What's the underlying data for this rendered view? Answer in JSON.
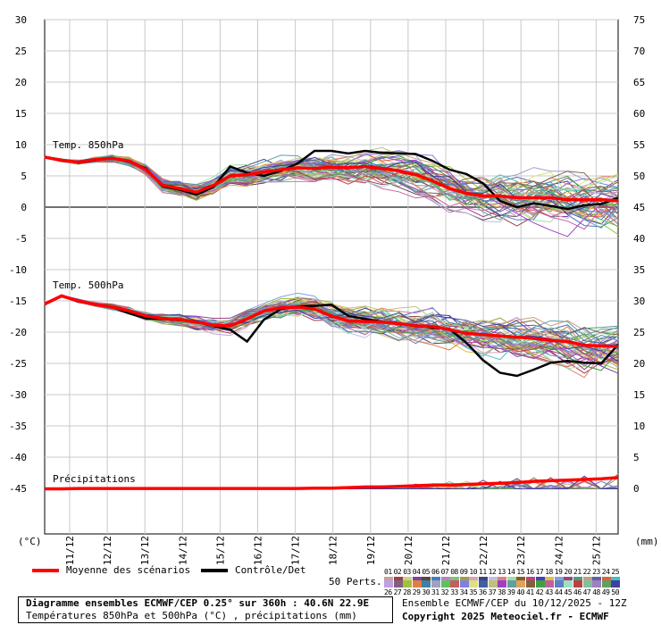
{
  "chart_data": {
    "type": "line",
    "x_labels": [
      "11/12",
      "12/12",
      "13/12",
      "14/12",
      "15/12",
      "16/12",
      "17/12",
      "18/12",
      "19/12",
      "20/12",
      "21/12",
      "22/12",
      "23/12",
      "24/12",
      "25/12"
    ],
    "y_left_ticks": [
      30,
      25,
      20,
      15,
      10,
      5,
      0,
      -5,
      -10,
      -15,
      -20,
      -25,
      -30,
      -35,
      -40,
      -45
    ],
    "y_right_ticks": [
      75,
      70,
      65,
      60,
      55,
      50,
      45,
      40,
      35,
      30,
      25,
      20,
      15,
      10,
      5,
      0
    ],
    "y_left_unit": "(°C)",
    "y_right_unit": "(mm)",
    "grid": true,
    "panels": [
      {
        "label": "Temp. 850hPa"
      },
      {
        "label": "Temp. 500hPa"
      },
      {
        "label": "Précipitations"
      }
    ],
    "series": [
      {
        "name": "Moyenne des scénarios",
        "color": "#ff0000",
        "t850": [
          8,
          7.5,
          7.2,
          7.6,
          7.8,
          7.4,
          6,
          3.5,
          3,
          2.4,
          3.5,
          5,
          5.2,
          5.6,
          6,
          6.3,
          6.2,
          6.4,
          6.3,
          6.5,
          6.2,
          5.8,
          5.2,
          4.2,
          3,
          2.2,
          1.8,
          1.8,
          1.5,
          1.5,
          1.5,
          1.2,
          1.2,
          1.2,
          1
        ],
        "t500": [
          -15.5,
          -14.2,
          -15,
          -15.6,
          -16,
          -16.6,
          -17.4,
          -17.8,
          -18,
          -18.4,
          -18.9,
          -19,
          -17.9,
          -16.6,
          -16.1,
          -16,
          -16.3,
          -17.4,
          -18.2,
          -18.3,
          -18.4,
          -18.6,
          -19,
          -19.1,
          -19.6,
          -20.2,
          -20.4,
          -20.6,
          -20.8,
          -21,
          -21.3,
          -21.5,
          -22.1,
          -22.2,
          -22.3
        ],
        "precip": [
          0,
          0,
          0.05,
          0.05,
          0.05,
          0.05,
          0.05,
          0.05,
          0.05,
          0.05,
          0.05,
          0.05,
          0.05,
          0.05,
          0.05,
          0.05,
          0.1,
          0.1,
          0.2,
          0.3,
          0.3,
          0.4,
          0.5,
          0.6,
          0.6,
          0.7,
          0.8,
          0.9,
          1,
          1.2,
          1.3,
          1.4,
          1.5,
          1.6,
          1.8
        ]
      },
      {
        "name": "Contrôle/Det",
        "color": "#000000",
        "t850": [
          8,
          7.6,
          7.1,
          7.5,
          7.8,
          7.3,
          6.2,
          3.3,
          2.8,
          2,
          3.2,
          6.5,
          5.5,
          5,
          5.8,
          7,
          9,
          9,
          8.6,
          9,
          8.7,
          8.6,
          8.5,
          7.4,
          6,
          5.3,
          3.8,
          1,
          0,
          0.6,
          0.2,
          -0.3,
          0.3,
          0.5,
          1.5
        ],
        "t500": [
          -15.5,
          -14.2,
          -15.1,
          -15.6,
          -16,
          -17,
          -17.8,
          -17.9,
          -18.1,
          -18.3,
          -19,
          -19.6,
          -21.5,
          -18,
          -16.3,
          -15.9,
          -15.8,
          -15.6,
          -17.4,
          -17.9,
          -18.3,
          -18.7,
          -18.9,
          -19.3,
          -19.5,
          -21.7,
          -24.5,
          -26.5,
          -27,
          -26,
          -24.9,
          -24.6,
          -24.9,
          -25,
          -22
        ]
      }
    ],
    "members": 50
  },
  "legend": {
    "mean_label": "Moyenne des scénarios",
    "control_label": "Contrôle/Det",
    "perts_label": "50 Perts.",
    "perts_row1": [
      "01",
      "02",
      "03",
      "04",
      "05",
      "06",
      "07",
      "08",
      "09",
      "10",
      "11",
      "12",
      "13",
      "14",
      "15",
      "16",
      "17",
      "18",
      "19",
      "20",
      "21",
      "22",
      "23",
      "24",
      "25"
    ],
    "perts_row2": [
      "26",
      "27",
      "28",
      "29",
      "30",
      "31",
      "32",
      "33",
      "34",
      "35",
      "36",
      "37",
      "38",
      "39",
      "40",
      "41",
      "42",
      "43",
      "44",
      "45",
      "46",
      "47",
      "48",
      "49",
      "50"
    ],
    "perts_colors_row1": [
      "#c8a0a0",
      "#a04040",
      "#d0d080",
      "#8040a0",
      "#604040",
      "#4080c0",
      "#c080c0",
      "#80c080",
      "#a0a040",
      "#e0a0c0",
      "#404080",
      "#c0c0e0",
      "#e08080",
      "#a0e0a0",
      "#806020",
      "#c04080",
      "#4040c0",
      "#e0c040",
      "#80a0e0",
      "#a04080",
      "#40a080",
      "#c0a080",
      "#6060a0",
      "#e06040",
      "#40c0c0"
    ],
    "perts_colors_row2": [
      "#c0a0e0",
      "#806080",
      "#a0c040",
      "#e08040",
      "#4080a0",
      "#a0a0c0",
      "#60c060",
      "#c06060",
      "#8080e0",
      "#e0e080",
      "#4060a0",
      "#c0c080",
      "#a040c0",
      "#60a0a0",
      "#e0a060",
      "#806040",
      "#40a040",
      "#c060a0",
      "#6080c0",
      "#a0e0c0",
      "#c04040",
      "#80c0a0",
      "#a080c0",
      "#60a060",
      "#4040a0"
    ]
  },
  "title": {
    "line1": "Diagramme ensembles ECMWF/CEP 0.25° sur 360h : 40.6N 22.9E",
    "line2": "Températures 850hPa et 500hPa (°C) , précipitations (mm)"
  },
  "info": {
    "run": "Ensemble ECMWF/CEP du 10/12/2025 - 12Z",
    "copyright": "Copyright 2025 Meteociel.fr - ECMWF"
  }
}
